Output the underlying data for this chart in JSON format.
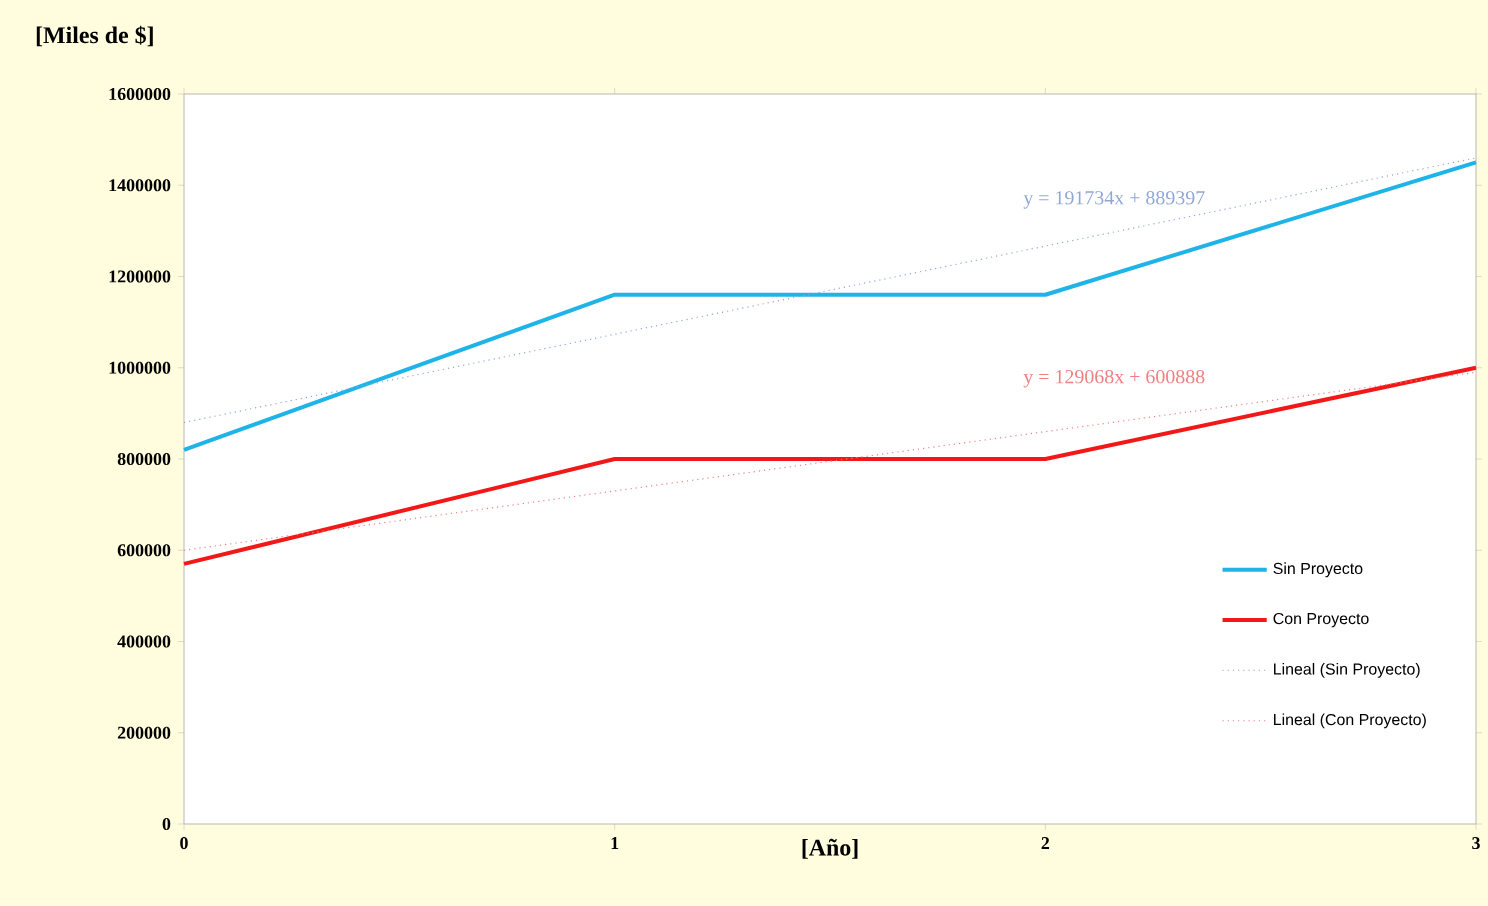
{
  "chart_data": {
    "type": "line",
    "title": "[Miles de $]",
    "xlabel": "[Año]",
    "x": [
      0,
      1,
      2,
      3
    ],
    "xlim": [
      0,
      3
    ],
    "xticks": [
      0,
      1,
      2,
      3
    ],
    "ylim": [
      0,
      1600000
    ],
    "yticks": [
      0,
      200000,
      400000,
      600000,
      800000,
      1000000,
      1200000,
      1400000,
      1600000
    ],
    "series": [
      {
        "name": "Sin Proyecto",
        "color": "#1fb4e8",
        "values": [
          820000,
          1160000,
          1160000,
          1450000
        ],
        "line_style": "solid"
      },
      {
        "name": "Con Proyecto",
        "color": "#f21818",
        "values": [
          570000,
          800000,
          800000,
          1000000
        ],
        "line_style": "solid"
      },
      {
        "name": "Lineal (Sin Proyecto)",
        "color": "#8fa7d6",
        "values": [
          880000,
          null,
          null,
          1460000
        ],
        "line_style": "dotted"
      },
      {
        "name": "Lineal (Con Proyecto)",
        "color": "#f08080",
        "values": [
          600000,
          null,
          null,
          990000
        ],
        "line_style": "dotted"
      }
    ],
    "annotations": [
      "y = 191734x + 889397",
      "y = 129068x + 600888"
    ],
    "legend": "bottom right",
    "marker": "none",
    "grid": false
  }
}
